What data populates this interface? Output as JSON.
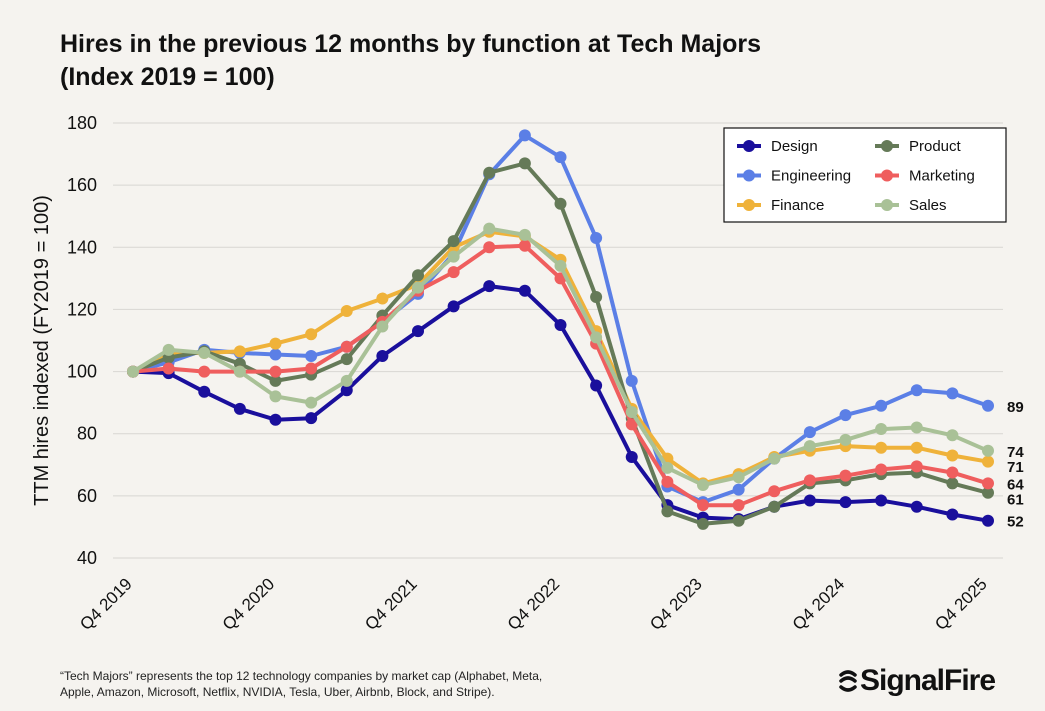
{
  "header": {
    "title_line1": "Hires in the previous 12 months by function at Tech Majors",
    "title_line2": "(Index 2019 = 100)"
  },
  "footer": {
    "note_line1": "“Tech Majors” represents the top 12 technology companies by market cap (Alphabet, Meta,",
    "note_line2": "Apple, Amazon, Microsoft, Netflix, NVIDIA, Tesla, Uber, Airbnb, Block, and Stripe).",
    "logo_text": "SignalFire"
  },
  "chart_data": {
    "type": "line",
    "title": "Hires in the previous 12 months by function at Tech Majors (Index 2019 = 100)",
    "ylabel": "TTM hires indexed (FY2019 = 100)",
    "xlabel": "",
    "ylim": [
      40,
      180
    ],
    "yticks": [
      40,
      60,
      80,
      100,
      120,
      140,
      160,
      180
    ],
    "xtick_labels": [
      "Q4 2019",
      "Q4 2020",
      "Q4 2021",
      "Q4 2022",
      "Q4 2023",
      "Q4 2024",
      "Q4 2025"
    ],
    "x_periods": 25,
    "grid": "horizontal",
    "legend_position": "top-right",
    "series": [
      {
        "name": "Design",
        "color": "#1a0f9c",
        "values": [
          100,
          99.5,
          93.5,
          88,
          84.5,
          85,
          94,
          105,
          113,
          121,
          127.5,
          126,
          115,
          95.5,
          72.5,
          57,
          53,
          52.5,
          56.5,
          58.5,
          58,
          58.5,
          56.5,
          54,
          52
        ],
        "end_label": "52"
      },
      {
        "name": "Engineering",
        "color": "#5b7fe6",
        "values": [
          100,
          103,
          107,
          106,
          105.5,
          105,
          108,
          116,
          125,
          138,
          163.5,
          176,
          169,
          143,
          97,
          63,
          58,
          62,
          72,
          80.5,
          86,
          89,
          94,
          93,
          89
        ],
        "end_label": "89"
      },
      {
        "name": "Finance",
        "color": "#efb23a",
        "values": [
          100,
          106,
          106,
          106.5,
          109,
          112,
          119.5,
          123.5,
          128,
          140,
          145,
          143.5,
          136,
          113,
          88,
          72,
          64,
          67,
          72.5,
          74.5,
          76,
          75.5,
          75.5,
          73,
          71
        ],
        "end_label": "71"
      },
      {
        "name": "Product",
        "color": "#657a58",
        "values": [
          100,
          104.5,
          106.5,
          102.5,
          97,
          99,
          104,
          118,
          131,
          142,
          164,
          167,
          154,
          124,
          85,
          55,
          51,
          52,
          56.5,
          64,
          65,
          67,
          67.5,
          64,
          61
        ],
        "end_label": "61"
      },
      {
        "name": "Marketing",
        "color": "#ef5e5e",
        "values": [
          100,
          101,
          100,
          100,
          100,
          101,
          108,
          116,
          126,
          132,
          140,
          140.5,
          130,
          109,
          83,
          64.5,
          57,
          57,
          61.5,
          65,
          66.5,
          68.5,
          69.5,
          67.5,
          64
        ],
        "end_label": "64"
      },
      {
        "name": "Sales",
        "color": "#a9c197",
        "values": [
          100,
          107,
          106,
          100,
          92,
          90,
          97,
          114.5,
          127,
          137,
          146,
          144,
          134,
          111,
          87,
          69,
          63.5,
          66,
          72,
          76,
          78,
          81.5,
          82,
          79.5,
          74.5
        ],
        "end_label": "74"
      }
    ]
  }
}
